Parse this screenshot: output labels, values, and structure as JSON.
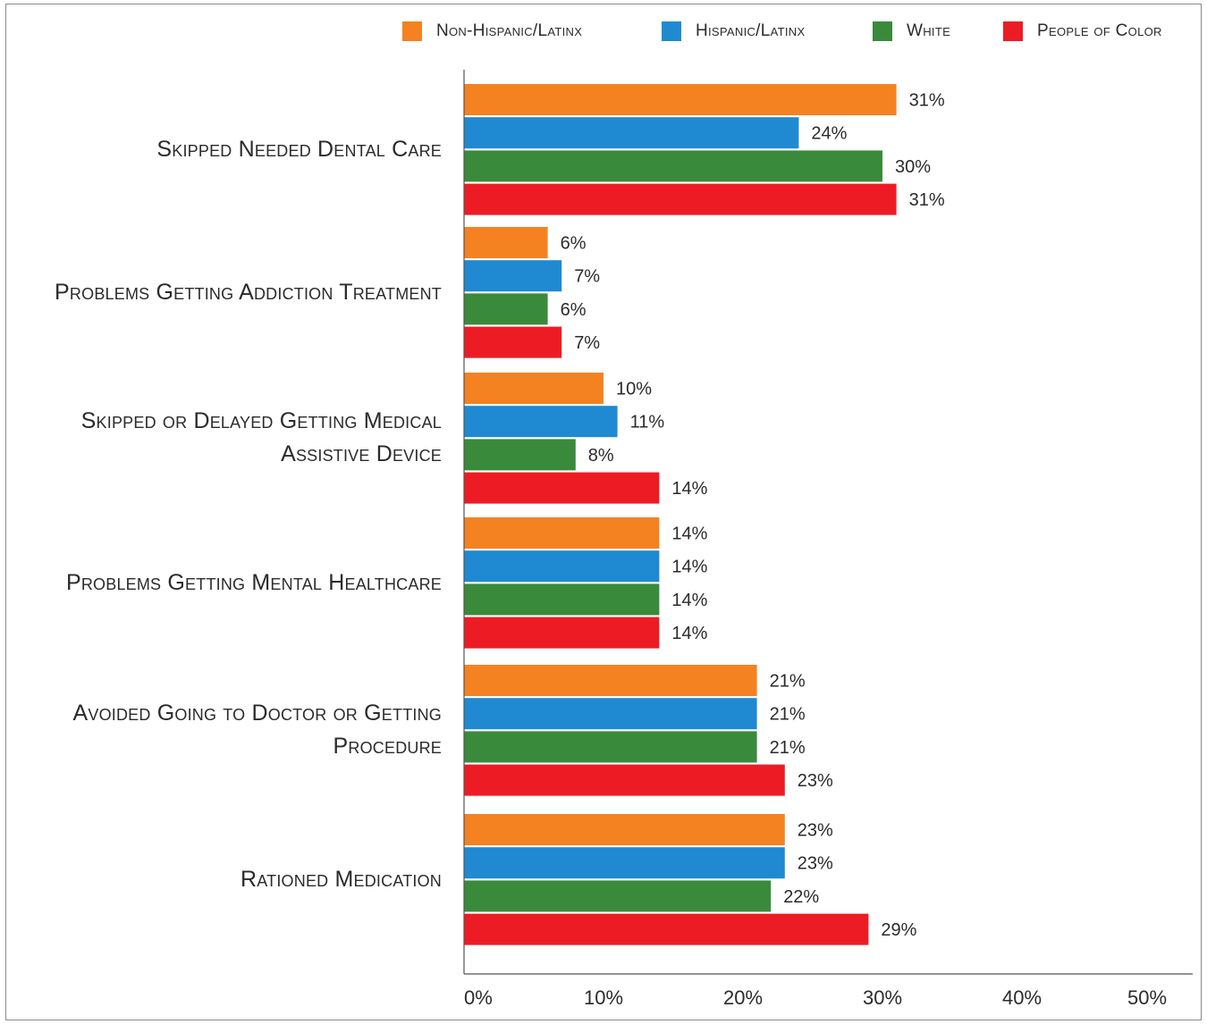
{
  "chart_data": {
    "type": "bar",
    "orientation": "horizontal",
    "title": "",
    "xlabel": "",
    "ylabel": "",
    "xlim": [
      0,
      50
    ],
    "x_ticks": [
      "0%",
      "10%",
      "20%",
      "30%",
      "40%",
      "50%"
    ],
    "legend_position": "top",
    "categories": [
      [
        "Skipped Needed Dental Care"
      ],
      [
        "Problems Getting Addiction Treatment"
      ],
      [
        "Skipped or Delayed Getting Medical",
        "Assistive Device"
      ],
      [
        "Problems Getting Mental Healthcare"
      ],
      [
        "Avoided Going to Doctor or Getting",
        "Procedure"
      ],
      [
        "Rationed Medication"
      ]
    ],
    "series": [
      {
        "name": "Non-Hispanic/Latinx",
        "color": "#f58220",
        "values": [
          31,
          6,
          10,
          14,
          21,
          23
        ],
        "labels": [
          "31%",
          "6%",
          "10%",
          "14%",
          "21%",
          "23%"
        ]
      },
      {
        "name": "Hispanic/Latinx",
        "color": "#1f8ad1",
        "values": [
          24,
          7,
          11,
          14,
          21,
          23
        ],
        "labels": [
          "24%",
          "7%",
          "11%",
          "14%",
          "21%",
          "23%"
        ]
      },
      {
        "name": "White",
        "color": "#3a8a3c",
        "values": [
          30,
          6,
          8,
          14,
          21,
          22
        ],
        "labels": [
          "30%",
          "6%",
          "8%",
          "14%",
          "21%",
          "22%"
        ]
      },
      {
        "name": "People of Color",
        "color": "#ed1c24",
        "values": [
          31,
          7,
          14,
          14,
          23,
          29
        ],
        "labels": [
          "31%",
          "7%",
          "14%",
          "14%",
          "23%",
          "29%"
        ]
      }
    ]
  }
}
